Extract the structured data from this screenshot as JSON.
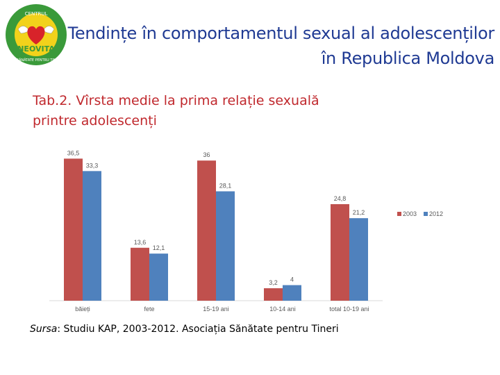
{
  "header": {
    "title_line1": "Tendințe în comportamentul sexual al adolescenților",
    "title_line2": "în Republica Moldova",
    "logo_top_text": "CENTRUL",
    "logo_name": "NEOVITA",
    "logo_bottom_text": "DE SĂNĂTATE PENTRU TINERI",
    "logo_icon": "heart-with-wings-icon"
  },
  "subtitle": {
    "line1": "Tab.2. Vîrsta medie la prima relație sexuală",
    "line2": "printre adolescenți"
  },
  "source": {
    "label": "Sursa",
    "text": ": Studiu KAP, 2003-2012. Asociația Sănătate pentru  Tineri"
  },
  "colors": {
    "title": "#1f3a93",
    "subtitle": "#c0282d",
    "series_2003": "#c0504d",
    "series_2012": "#4f81bd",
    "logo_green": "#3a9a3a",
    "logo_yellow": "#f2d21b"
  },
  "chart_data": {
    "type": "bar",
    "categories": [
      "băieți",
      "fete",
      "15-19 ani",
      "10-14 ani",
      "total 10-19 ani"
    ],
    "series": [
      {
        "name": "2003",
        "values": [
          36.5,
          13.6,
          36,
          3.2,
          24.8
        ],
        "labels": [
          "36,5",
          "13,6",
          "36",
          "3,2",
          "24,8"
        ]
      },
      {
        "name": "2012",
        "values": [
          33.3,
          12.1,
          28.1,
          4,
          21.2
        ],
        "labels": [
          "33,3",
          "12,1",
          "28,1",
          "4",
          "21,2"
        ]
      }
    ],
    "ylim": [
      0,
      38
    ],
    "grid": false,
    "legend": "right"
  }
}
